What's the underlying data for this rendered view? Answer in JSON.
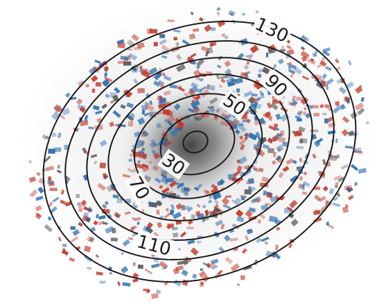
{
  "chart_data": {
    "type": "contour",
    "title": "",
    "xlabel": "",
    "ylabel": "",
    "background": "grayscale galaxy image overlaid with red/blue residual velocity map",
    "colors": {
      "contour": "#1a1a1a",
      "positive": "#c0392b",
      "negative": "#2b6cb0",
      "galaxy": "#555555"
    },
    "contour_levels": [
      10,
      30,
      50,
      70,
      90,
      110,
      130
    ],
    "contour_labels": [
      "30",
      "50",
      "70",
      "90",
      "110",
      "130"
    ]
  }
}
